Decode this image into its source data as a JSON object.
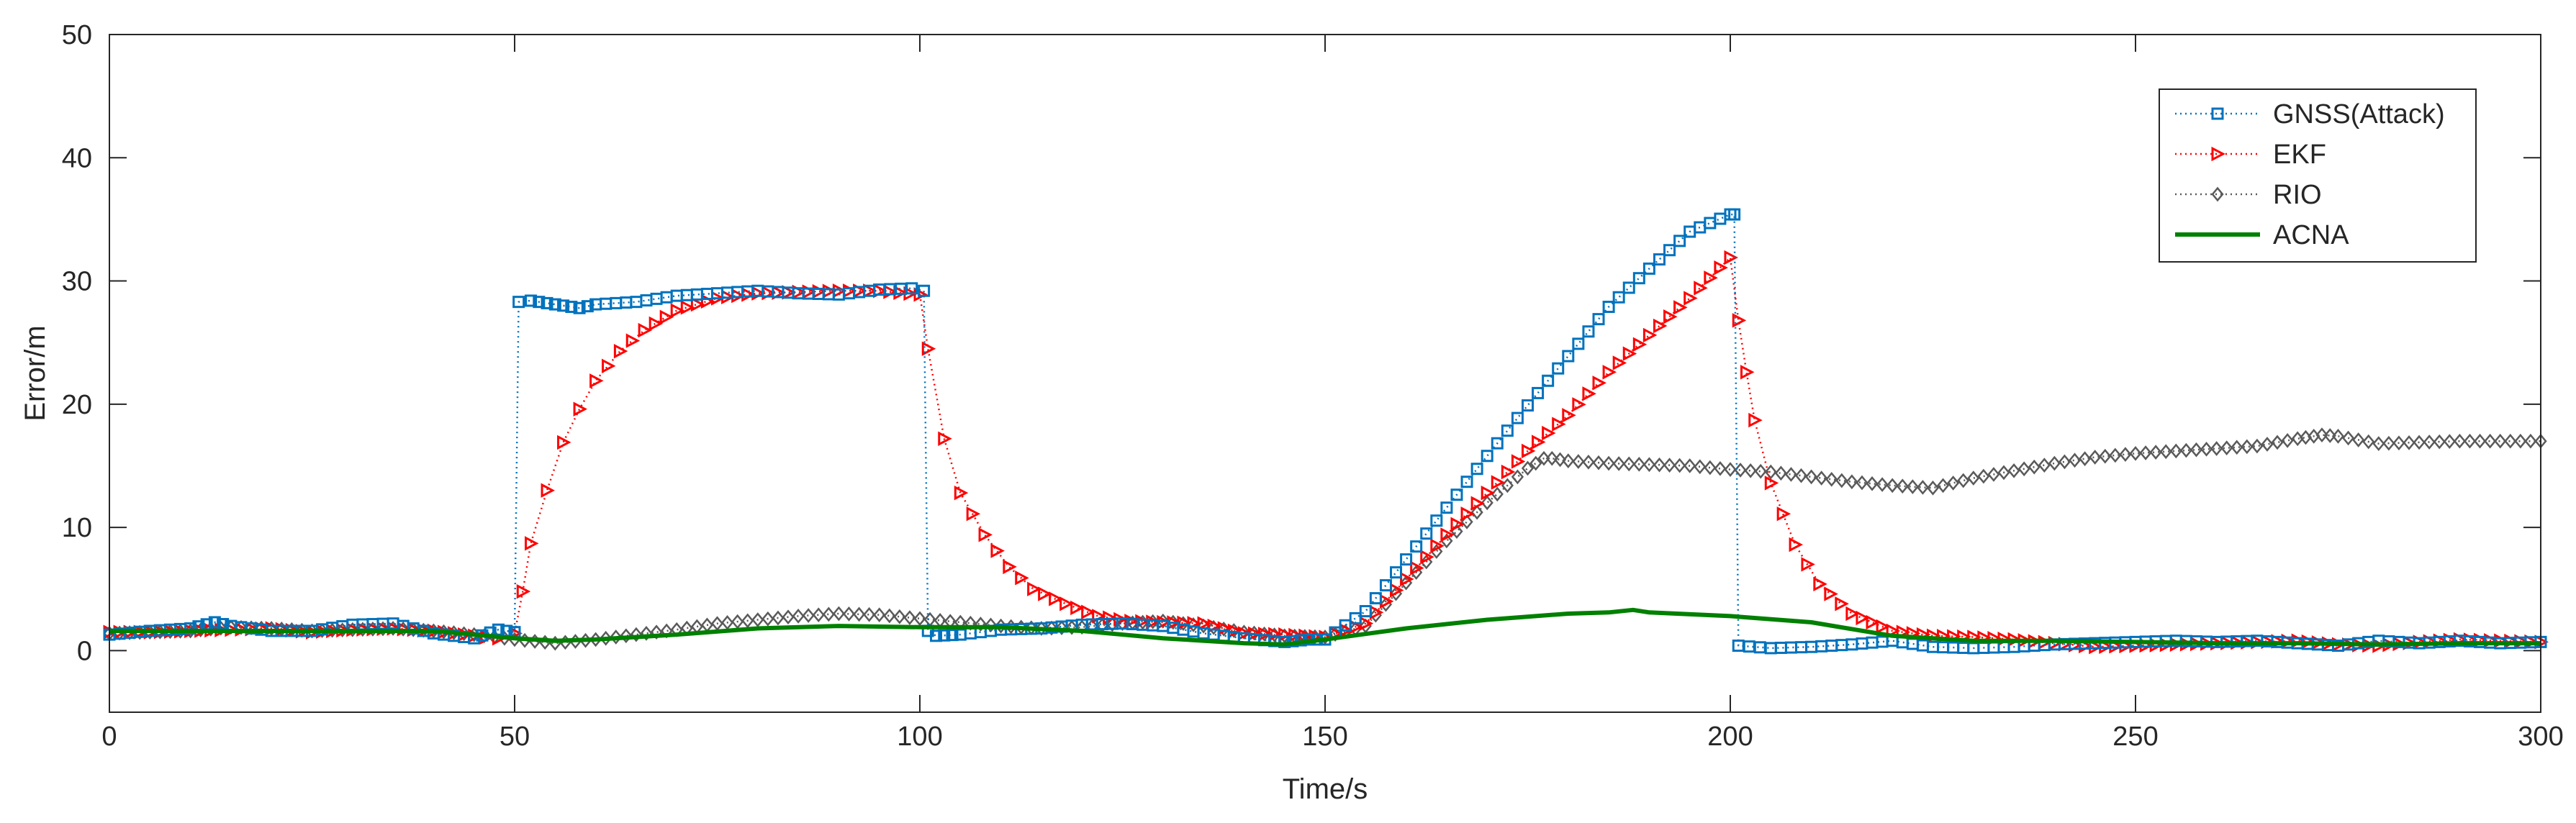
{
  "chart_data": {
    "type": "line",
    "title": "",
    "xlabel": "Time/s",
    "ylabel": "Error/m",
    "xlim": [
      0,
      300
    ],
    "ylim": [
      -5,
      50
    ],
    "xticks": [
      0,
      50,
      100,
      150,
      200,
      250,
      300
    ],
    "yticks": [
      0,
      10,
      20,
      30,
      40,
      50
    ],
    "xtick_labels": [
      "0",
      "50",
      "100",
      "150",
      "200",
      "250",
      "300"
    ],
    "ytick_labels": [
      "0",
      "10",
      "20",
      "30",
      "40",
      "50"
    ],
    "grid": false,
    "legend_position": "top-right",
    "series": [
      {
        "name": "GNSS(Attack)",
        "color": "#0072BD",
        "marker": "square",
        "line_style": "dotted",
        "x": [
          0,
          5,
          10,
          13,
          15,
          20,
          25,
          30,
          35,
          40,
          45,
          48,
          50,
          50.5,
          52,
          55,
          58,
          60,
          65,
          70,
          75,
          80,
          85,
          90,
          95,
          99,
          100.5,
          101,
          102,
          105,
          110,
          115,
          120,
          125,
          130,
          135,
          140,
          145,
          148,
          150,
          155,
          160,
          165,
          170,
          175,
          180,
          185,
          190,
          195,
          200,
          200.5,
          201,
          205,
          210,
          215,
          220,
          225,
          230,
          235,
          240,
          245,
          250,
          255,
          260,
          265,
          270,
          275,
          280,
          285,
          290,
          295,
          300
        ],
        "values": [
          1.3,
          1.6,
          1.8,
          2.3,
          2.0,
          1.6,
          1.6,
          2.1,
          2.2,
          1.4,
          1.0,
          1.7,
          1.5,
          28.3,
          28.4,
          28.1,
          27.8,
          28.1,
          28.3,
          28.8,
          29.0,
          29.2,
          29.0,
          28.9,
          29.3,
          29.4,
          29.2,
          1.6,
          1.2,
          1.3,
          1.7,
          1.8,
          2.1,
          2.2,
          2.0,
          1.4,
          1.0,
          0.7,
          0.9,
          0.9,
          3.2,
          7.4,
          11.6,
          15.8,
          19.9,
          23.9,
          27.9,
          31.0,
          34.0,
          35.4,
          35.4,
          0.4,
          0.2,
          0.3,
          0.5,
          0.8,
          0.3,
          0.2,
          0.3,
          0.5,
          0.6,
          0.7,
          0.8,
          0.7,
          0.8,
          0.6,
          0.4,
          0.8,
          0.6,
          0.8,
          0.6,
          0.7
        ]
      },
      {
        "name": "EKF",
        "color": "#FF0000",
        "marker": "triangle-right",
        "line_style": "dotted",
        "x": [
          0,
          5,
          10,
          15,
          20,
          25,
          30,
          35,
          40,
          45,
          48,
          50,
          51,
          52,
          54,
          56,
          58,
          60,
          63,
          66,
          70,
          75,
          80,
          85,
          90,
          95,
          100,
          101,
          103,
          105,
          108,
          111,
          114,
          118,
          122,
          126,
          130,
          135,
          140,
          145,
          150,
          155,
          160,
          165,
          170,
          175,
          180,
          185,
          190,
          195,
          200,
          201,
          202,
          203,
          205,
          208,
          211,
          215,
          220,
          225,
          230,
          235,
          240,
          245,
          250,
          255,
          260,
          265,
          270,
          275,
          280,
          285,
          290,
          295,
          300
        ],
        "values": [
          1.5,
          1.5,
          1.6,
          1.7,
          1.8,
          1.5,
          1.7,
          1.8,
          1.6,
          1.2,
          1.0,
          1.4,
          4.8,
          8.7,
          13.0,
          16.9,
          19.6,
          21.9,
          24.3,
          26.0,
          27.6,
          28.6,
          29.0,
          29.1,
          29.2,
          29.2,
          28.9,
          24.5,
          17.2,
          12.8,
          9.4,
          6.8,
          5.0,
          3.8,
          2.8,
          2.4,
          2.3,
          2.2,
          1.4,
          1.3,
          1.1,
          2.2,
          5.8,
          9.4,
          12.8,
          16.2,
          19.1,
          22.6,
          25.6,
          28.6,
          31.9,
          26.8,
          22.6,
          18.7,
          13.6,
          8.6,
          5.4,
          3.0,
          1.6,
          1.2,
          1.1,
          0.9,
          0.6,
          0.3,
          0.4,
          0.5,
          0.6,
          0.7,
          0.8,
          0.5,
          0.4,
          0.7,
          0.9,
          0.8,
          0.7
        ]
      },
      {
        "name": "RIO",
        "color": "#5A5A5A",
        "marker": "diamond",
        "line_style": "dotted",
        "x": [
          0,
          5,
          10,
          15,
          20,
          25,
          30,
          35,
          40,
          45,
          50,
          55,
          60,
          65,
          70,
          75,
          80,
          85,
          90,
          95,
          100,
          105,
          110,
          115,
          120,
          125,
          130,
          135,
          140,
          145,
          150,
          155,
          160,
          165,
          170,
          175,
          177,
          178,
          180,
          185,
          190,
          195,
          200,
          205,
          210,
          215,
          220,
          225,
          230,
          235,
          240,
          245,
          250,
          255,
          260,
          265,
          270,
          273,
          275,
          280,
          285,
          290,
          295,
          300
        ],
        "values": [
          1.4,
          1.5,
          1.6,
          1.9,
          1.8,
          1.6,
          1.7,
          1.8,
          1.6,
          1.3,
          0.9,
          0.6,
          0.9,
          1.3,
          1.7,
          2.2,
          2.5,
          2.8,
          3.0,
          2.9,
          2.6,
          2.3,
          2.0,
          1.8,
          1.9,
          2.2,
          2.4,
          2.0,
          1.5,
          1.2,
          1.1,
          2.0,
          5.5,
          8.9,
          12.0,
          14.8,
          15.6,
          15.6,
          15.4,
          15.2,
          15.1,
          15.0,
          14.7,
          14.5,
          14.1,
          13.7,
          13.4,
          13.2,
          14.0,
          14.6,
          15.2,
          15.7,
          16.0,
          16.2,
          16.4,
          16.6,
          17.2,
          17.5,
          17.4,
          16.8,
          16.9,
          17.0,
          17.0,
          17.0
        ]
      },
      {
        "name": "ACNA",
        "color": "#008000",
        "marker": "none",
        "line_style": "solid",
        "x": [
          0,
          10,
          20,
          30,
          40,
          50,
          55,
          60,
          70,
          80,
          90,
          100,
          110,
          120,
          130,
          140,
          145,
          150,
          160,
          170,
          180,
          185,
          188,
          190,
          200,
          210,
          220,
          230,
          240,
          250,
          260,
          270,
          280,
          290,
          300
        ],
        "values": [
          1.6,
          1.6,
          1.6,
          1.6,
          1.6,
          1.0,
          0.8,
          0.9,
          1.3,
          1.8,
          2.0,
          1.9,
          1.9,
          1.6,
          1.0,
          0.6,
          0.5,
          0.9,
          1.8,
          2.5,
          3.0,
          3.1,
          3.3,
          3.1,
          2.8,
          2.3,
          1.2,
          0.8,
          0.8,
          0.7,
          0.6,
          0.6,
          0.5,
          0.6,
          0.6
        ]
      }
    ]
  }
}
